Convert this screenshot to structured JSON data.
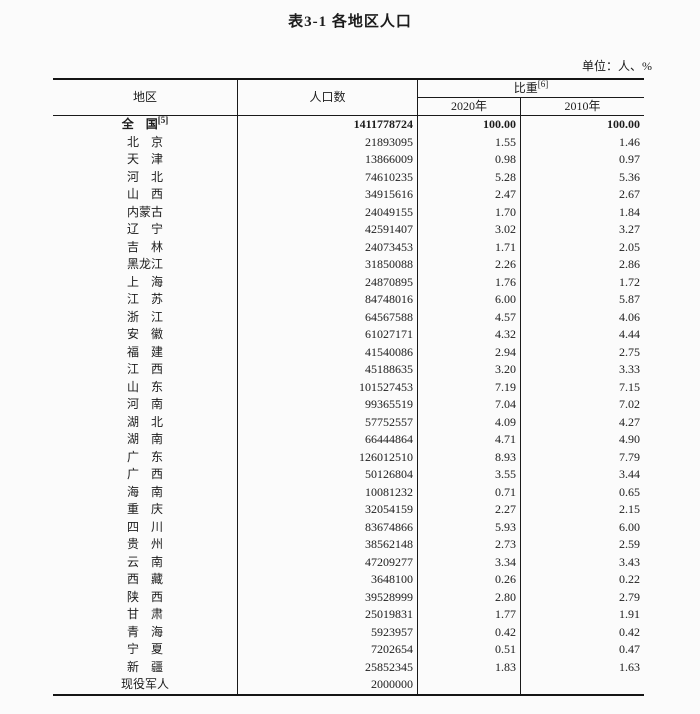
{
  "title": "表3-1 各地区人口",
  "unit_label": "单位：人、%",
  "table": {
    "headers": {
      "region": "地区",
      "population": "人口数",
      "share": "比重",
      "share_sup": "[6]",
      "year_2020": "2020年",
      "year_2010": "2010年"
    },
    "rows": [
      {
        "region": "全　国",
        "sup": "[5]",
        "population": "1411778724",
        "share_2020": "100.00",
        "share_2010": "100.00",
        "bold": true
      },
      {
        "region": "北　京",
        "population": "21893095",
        "share_2020": "1.55",
        "share_2010": "1.46"
      },
      {
        "region": "天　津",
        "population": "13866009",
        "share_2020": "0.98",
        "share_2010": "0.97"
      },
      {
        "region": "河　北",
        "population": "74610235",
        "share_2020": "5.28",
        "share_2010": "5.36"
      },
      {
        "region": "山　西",
        "population": "34915616",
        "share_2020": "2.47",
        "share_2010": "2.67"
      },
      {
        "region": "内蒙古",
        "population": "24049155",
        "share_2020": "1.70",
        "share_2010": "1.84"
      },
      {
        "region": "辽　宁",
        "population": "42591407",
        "share_2020": "3.02",
        "share_2010": "3.27"
      },
      {
        "region": "吉　林",
        "population": "24073453",
        "share_2020": "1.71",
        "share_2010": "2.05"
      },
      {
        "region": "黑龙江",
        "population": "31850088",
        "share_2020": "2.26",
        "share_2010": "2.86"
      },
      {
        "region": "上　海",
        "population": "24870895",
        "share_2020": "1.76",
        "share_2010": "1.72"
      },
      {
        "region": "江　苏",
        "population": "84748016",
        "share_2020": "6.00",
        "share_2010": "5.87"
      },
      {
        "region": "浙　江",
        "population": "64567588",
        "share_2020": "4.57",
        "share_2010": "4.06"
      },
      {
        "region": "安　徽",
        "population": "61027171",
        "share_2020": "4.32",
        "share_2010": "4.44"
      },
      {
        "region": "福　建",
        "population": "41540086",
        "share_2020": "2.94",
        "share_2010": "2.75"
      },
      {
        "region": "江　西",
        "population": "45188635",
        "share_2020": "3.20",
        "share_2010": "3.33"
      },
      {
        "region": "山　东",
        "population": "101527453",
        "share_2020": "7.19",
        "share_2010": "7.15"
      },
      {
        "region": "河　南",
        "population": "99365519",
        "share_2020": "7.04",
        "share_2010": "7.02"
      },
      {
        "region": "湖　北",
        "population": "57752557",
        "share_2020": "4.09",
        "share_2010": "4.27"
      },
      {
        "region": "湖　南",
        "population": "66444864",
        "share_2020": "4.71",
        "share_2010": "4.90"
      },
      {
        "region": "广　东",
        "population": "126012510",
        "share_2020": "8.93",
        "share_2010": "7.79"
      },
      {
        "region": "广　西",
        "population": "50126804",
        "share_2020": "3.55",
        "share_2010": "3.44"
      },
      {
        "region": "海　南",
        "population": "10081232",
        "share_2020": "0.71",
        "share_2010": "0.65"
      },
      {
        "region": "重　庆",
        "population": "32054159",
        "share_2020": "2.27",
        "share_2010": "2.15"
      },
      {
        "region": "四　川",
        "population": "83674866",
        "share_2020": "5.93",
        "share_2010": "6.00"
      },
      {
        "region": "贵　州",
        "population": "38562148",
        "share_2020": "2.73",
        "share_2010": "2.59"
      },
      {
        "region": "云　南",
        "population": "47209277",
        "share_2020": "3.34",
        "share_2010": "3.43"
      },
      {
        "region": "西　藏",
        "population": "3648100",
        "share_2020": "0.26",
        "share_2010": "0.22"
      },
      {
        "region": "陕　西",
        "population": "39528999",
        "share_2020": "2.80",
        "share_2010": "2.79"
      },
      {
        "region": "甘　肃",
        "population": "25019831",
        "share_2020": "1.77",
        "share_2010": "1.91"
      },
      {
        "region": "青　海",
        "population": "5923957",
        "share_2020": "0.42",
        "share_2010": "0.42"
      },
      {
        "region": "宁　夏",
        "population": "7202654",
        "share_2020": "0.51",
        "share_2010": "0.47"
      },
      {
        "region": "新　疆",
        "population": "25852345",
        "share_2020": "1.83",
        "share_2010": "1.63"
      },
      {
        "region": "现役军人",
        "population": "2000000",
        "share_2020": "",
        "share_2010": ""
      }
    ]
  },
  "colors": {
    "background": "#fbfbfb",
    "text": "#1c1c1c",
    "border": "#1a1a1a"
  }
}
